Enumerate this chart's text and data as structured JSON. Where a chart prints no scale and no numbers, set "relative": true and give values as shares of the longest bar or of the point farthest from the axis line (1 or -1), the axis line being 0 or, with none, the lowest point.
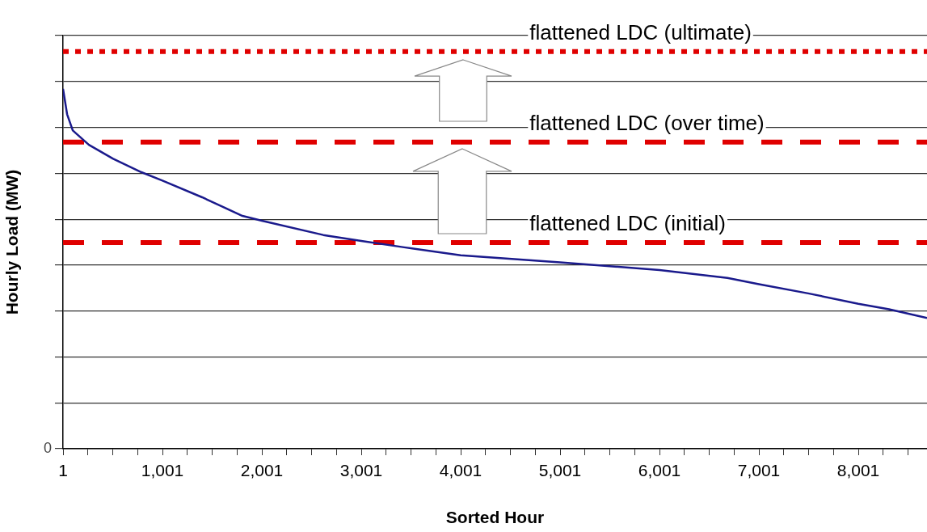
{
  "chart_data": {
    "type": "line",
    "relative": true,
    "xlabel": "Sorted Hour",
    "ylabel": "Hourly Load (MW)",
    "xlim": [
      1,
      8692
    ],
    "xticks": [
      1,
      {
        "value": 251,
        "label": null
      },
      {
        "value": 501,
        "label": null
      },
      {
        "value": 751,
        "label": null
      },
      {
        "value": 1001,
        "label": "1,001"
      },
      {
        "value": 1251,
        "label": null
      },
      {
        "value": 1501,
        "label": null
      },
      {
        "value": 1751,
        "label": null
      },
      {
        "value": 2001,
        "label": "2,001"
      },
      {
        "value": 2251,
        "label": null
      },
      {
        "value": 2501,
        "label": null
      },
      {
        "value": 2751,
        "label": null
      },
      {
        "value": 3001,
        "label": "3,001"
      },
      {
        "value": 3251,
        "label": null
      },
      {
        "value": 3501,
        "label": null
      },
      {
        "value": 3751,
        "label": null
      },
      {
        "value": 4001,
        "label": "4,001"
      },
      {
        "value": 4251,
        "label": null
      },
      {
        "value": 4501,
        "label": null
      },
      {
        "value": 4751,
        "label": null
      },
      {
        "value": 5001,
        "label": "5,001"
      },
      {
        "value": 5251,
        "label": null
      },
      {
        "value": 5501,
        "label": null
      },
      {
        "value": 5751,
        "label": null
      },
      {
        "value": 6001,
        "label": "6,001"
      },
      {
        "value": 6251,
        "label": null
      },
      {
        "value": 6501,
        "label": null
      },
      {
        "value": 6751,
        "label": null
      },
      {
        "value": 7001,
        "label": "7,001"
      },
      {
        "value": 7251,
        "label": null
      },
      {
        "value": 7501,
        "label": null
      },
      {
        "value": 7751,
        "label": null
      },
      {
        "value": 8001,
        "label": "8,001"
      },
      {
        "value": 8251,
        "label": null
      },
      {
        "value": 8501,
        "label": null
      }
    ],
    "annotations": [
      "0"
    ],
    "grid": "y",
    "legend": false,
    "marker": "none",
    "series": [
      {
        "color": "#1a1a8c",
        "line_style": "solid",
        "x": [
          1,
          42,
          99,
          261,
          505,
          790,
          1001,
          1400,
          1806,
          2001,
          2619,
          3001,
          3432,
          4001,
          5001,
          6001,
          6684,
          7001,
          7497,
          8001,
          8310,
          8692
        ],
        "values": [
          0.906,
          0.842,
          0.801,
          0.765,
          0.73,
          0.696,
          0.675,
          0.633,
          0.586,
          0.574,
          0.538,
          0.523,
          0.507,
          0.487,
          0.469,
          0.45,
          0.43,
          0.414,
          0.391,
          0.365,
          0.351,
          0.329
        ]
      },
      {
        "name": "flattened LDC (ultimate)",
        "color": "#e00000",
        "line_style": "dotted",
        "x": [
          1,
          8692
        ],
        "values": [
          1,
          1
        ]
      },
      {
        "name": "flattened LDC (over time)",
        "color": "#e00000",
        "line_style": "dashed",
        "x": [
          1,
          8692
        ],
        "values": [
          0.772,
          0.772
        ]
      },
      {
        "name": "flattened LDC (initial)",
        "color": "#e00000",
        "line_style": "dashed",
        "x": [
          1,
          8692
        ],
        "values": [
          0.519,
          0.519
        ]
      }
    ]
  }
}
